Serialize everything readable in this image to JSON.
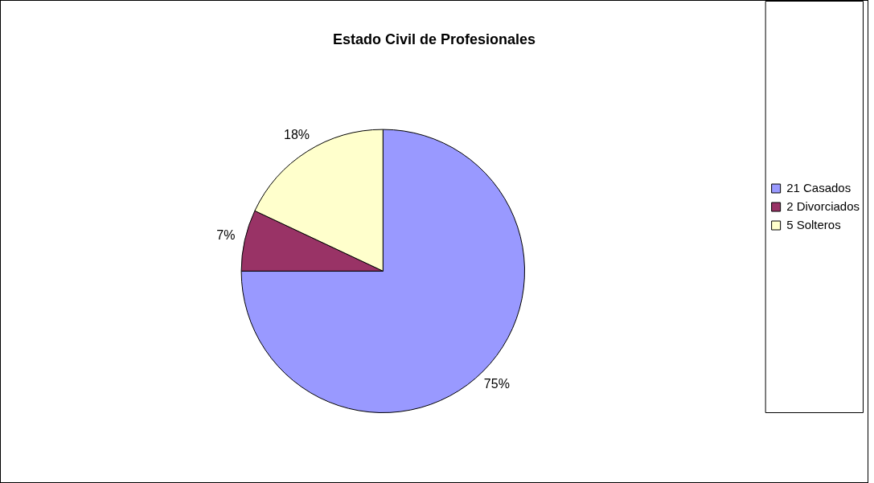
{
  "chart_data": {
    "type": "pie",
    "title": "Estado Civil de Profesionales",
    "categories": [
      "21 Casados",
      "2 Divorciados",
      "5 Solteros"
    ],
    "values": [
      75,
      7,
      18
    ],
    "colors": [
      "#9999ff",
      "#993366",
      "#ffffcc"
    ],
    "value_labels": [
      "75%",
      "7%",
      "18%"
    ],
    "legend": "right"
  }
}
